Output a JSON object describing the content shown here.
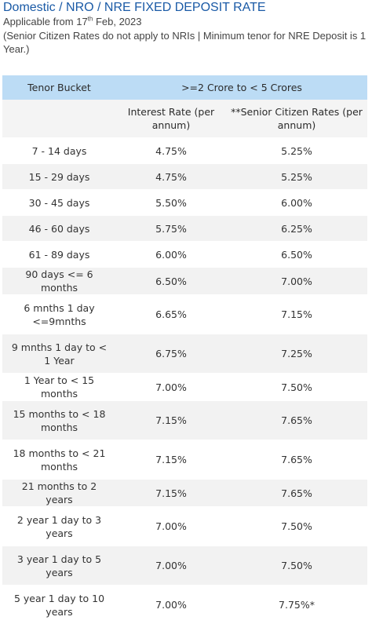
{
  "header": {
    "title": "Domestic / NRO / NRE FIXED DEPOSIT RATE",
    "applicable_prefix": "Applicable from 17",
    "applicable_sup": "th",
    "applicable_suffix": " Feb, 2023",
    "note": "(Senior Citizen Rates do not apply to NRIs | Minimum tenor for NRE Deposit is 1 Year.)"
  },
  "table": {
    "col_tenor": "Tenor Bucket",
    "col_group": ">=2 Crore to < 5 Crores",
    "col_interest": "Interest Rate (per annum)",
    "col_senior": "**Senior Citizen Rates (per annum)",
    "rows": [
      {
        "tenor": "7 - 14 days",
        "interest": "4.75%",
        "senior": "5.25%"
      },
      {
        "tenor": "15 - 29 days",
        "interest": "4.75%",
        "senior": "5.25%"
      },
      {
        "tenor": "30 - 45 days",
        "interest": "5.50%",
        "senior": "6.00%"
      },
      {
        "tenor": "46 - 60 days",
        "interest": "5.75%",
        "senior": "6.25%"
      },
      {
        "tenor": "61 - 89 days",
        "interest": "6.00%",
        "senior": "6.50%"
      },
      {
        "tenor": "90 days <= 6 months",
        "interest": "6.50%",
        "senior": "7.00%"
      },
      {
        "tenor": "6 mnths 1 day <=9mnths",
        "interest": "6.65%",
        "senior": "7.15%"
      },
      {
        "tenor": "9 mnths 1 day to < 1 Year",
        "interest": "6.75%",
        "senior": "7.25%"
      },
      {
        "tenor": "1 Year to < 15 months",
        "interest": "7.00%",
        "senior": "7.50%"
      },
      {
        "tenor": "15 months to < 18 months",
        "interest": "7.15%",
        "senior": "7.65%"
      },
      {
        "tenor": "18 months to < 21 months",
        "interest": "7.15%",
        "senior": "7.65%"
      },
      {
        "tenor": "21 months to 2 years",
        "interest": "7.15%",
        "senior": "7.65%"
      },
      {
        "tenor": "2 year 1 day to 3 years",
        "interest": "7.00%",
        "senior": "7.50%"
      },
      {
        "tenor": "3 year 1 day to 5 years",
        "interest": "7.00%",
        "senior": "7.50%"
      },
      {
        "tenor": "5 year 1 day to 10 years",
        "interest": "7.00%",
        "senior": "7.75%*"
      }
    ]
  },
  "colors": {
    "title": "#1a5aa6",
    "header_band": "#bcdcf5",
    "stripe": "#f2f2f2"
  }
}
